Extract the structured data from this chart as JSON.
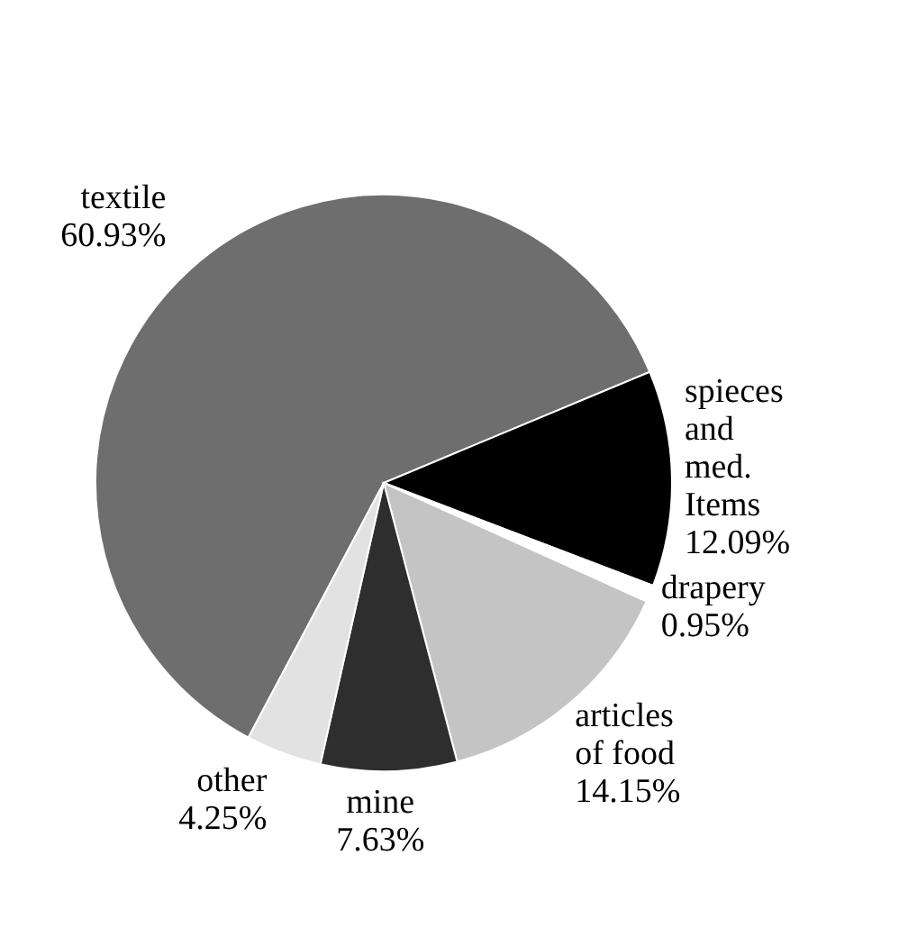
{
  "chart_data": {
    "type": "pie",
    "categories": [
      "textile",
      "spieces and med. Items",
      "drapery",
      "articles of food",
      "mine",
      "other"
    ],
    "values": [
      60.93,
      12.09,
      0.95,
      14.15,
      7.63,
      4.25
    ],
    "value_labels": [
      "60.93%",
      "12.09%",
      "0.95%",
      "14.15%",
      "7.63%",
      "4.25%"
    ],
    "colors": [
      "#6e6e6e",
      "#000000",
      "#ffffff",
      "#c4c4c4",
      "#2e2e2e",
      "#e2e2e2"
    ],
    "legend": false
  }
}
